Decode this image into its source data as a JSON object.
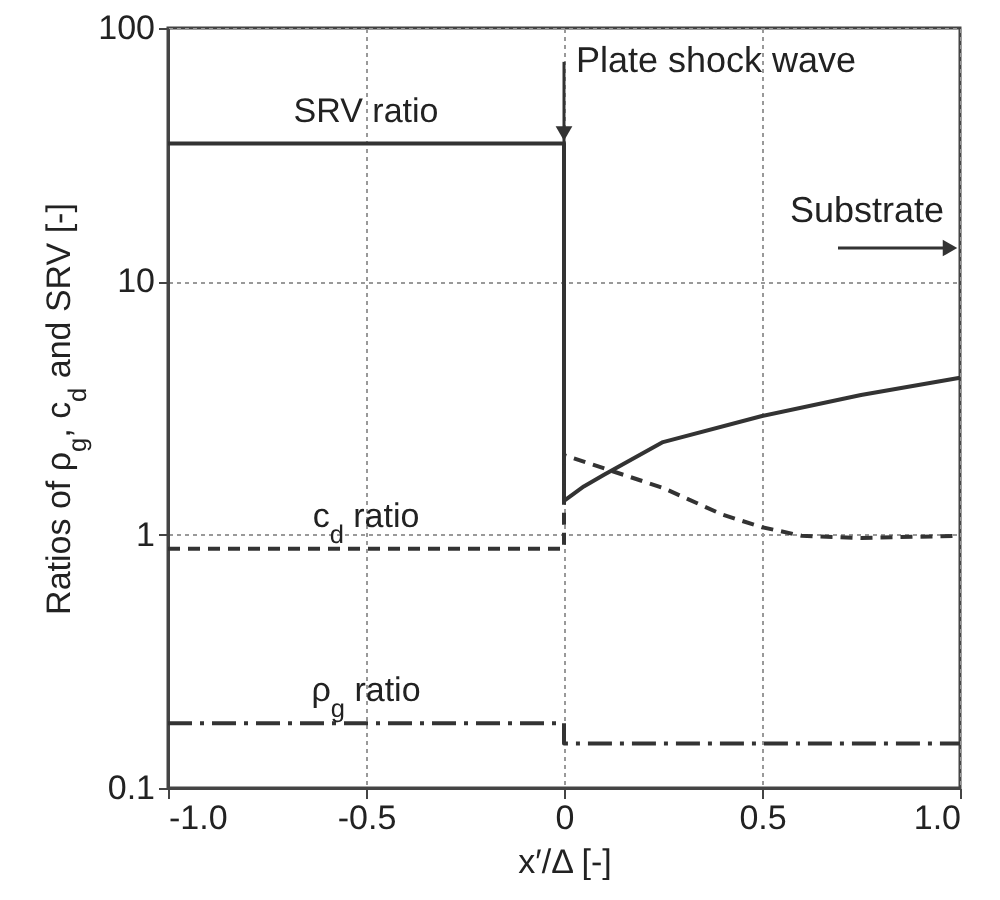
{
  "chart_data": {
    "type": "line",
    "xlabel": "x′/Δ [-]",
    "ylabel": "Ratios of ρ$_{g}$, c$_{d}$ and SRV  [-]",
    "xlim": [
      -1,
      1
    ],
    "xticks": [
      {
        "value": -1,
        "label": "-1.0"
      },
      -0.5,
      0,
      0.5,
      {
        "value": 1,
        "label": "1.0"
      }
    ],
    "ylim": [
      0.1,
      100
    ],
    "yticks": [
      0.1,
      1,
      10,
      100
    ],
    "log": "y",
    "grid": true,
    "series": [
      {
        "name": "SRV ratio",
        "color": "#333333",
        "line_style": "solid",
        "x": [
          -1,
          0,
          0,
          0.05,
          0.1,
          0.25,
          0.5,
          0.75,
          1
        ],
        "values": [
          35,
          35,
          1.36,
          1.55,
          1.72,
          2.32,
          2.94,
          3.56,
          4.16
        ]
      },
      {
        "name": "c$_{d}$ ratio",
        "color": "#333333",
        "line_style": "dashed",
        "x": [
          -1,
          0,
          0,
          0.25,
          0.4,
          0.5,
          0.6,
          0.75,
          1
        ],
        "values": [
          0.88,
          0.88,
          2.06,
          1.53,
          1.2,
          1.07,
          0.99,
          0.97,
          0.99
        ]
      },
      {
        "name": "ρ$_{g}$ ratio",
        "color": "#333333",
        "line_style": "dashdot",
        "x": [
          -1,
          0,
          0,
          1
        ],
        "values": [
          0.18,
          0.18,
          0.15,
          0.15
        ]
      }
    ],
    "annotations": [
      {
        "text": "Plate shock wave",
        "x": 0,
        "y": 35
      },
      "Substrate"
    ]
  }
}
